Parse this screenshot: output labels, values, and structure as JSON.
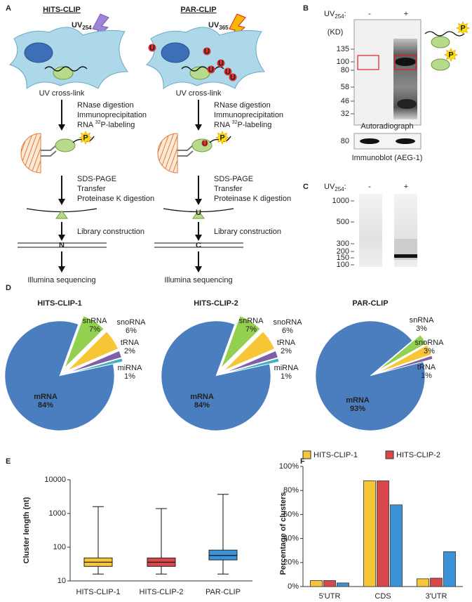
{
  "panel_labels": [
    "A",
    "B",
    "C",
    "D",
    "E",
    "F"
  ],
  "panel_a": {
    "methods": [
      {
        "title": "HITS-CLIP",
        "uv": {
          "base": "UV",
          "sub": "254"
        }
      },
      {
        "title": "PAR-CLIP",
        "uv": {
          "base": "UV",
          "sub": "365"
        }
      }
    ],
    "crosslink": "UV cross-link",
    "steps1": [
      "RNase digestion",
      "Immunoprecipitation"
    ],
    "labeling": {
      "before": "RNA ",
      "sup": "32",
      "after": "P-labeling"
    },
    "steps2": [
      "SDS-PAGE",
      "Transfer",
      "Proteinase K digestion"
    ],
    "library": "Library construction",
    "sequencing": "Illumina sequencing",
    "marks": {
      "phosphate": "P",
      "uridine": "U",
      "hits_mutation": "N",
      "par_mutation": "C"
    }
  },
  "panel_b": {
    "uv": {
      "base": "UV",
      "sub": "254",
      "suffix": ":"
    },
    "lanes": [
      "-",
      "+"
    ],
    "unit": "(KD)",
    "markers": [
      135,
      100,
      80,
      58,
      46,
      32
    ],
    "autoradiograph": "Autoradiograph",
    "blot_marker": 80,
    "immunoblot": "Immunoblot (AEG-1)"
  },
  "panel_c": {
    "uv": {
      "base": "UV",
      "sub": "254",
      "suffix": ":"
    },
    "lanes": [
      "-",
      "+"
    ],
    "markers": [
      1000,
      500,
      300,
      200,
      150,
      100
    ]
  },
  "chart_data": [
    {
      "type": "pie",
      "title": "HITS-CLIP-1",
      "categories": [
        "mRNA",
        "snRNA",
        "snoRNA",
        "tRNA",
        "miRNA"
      ],
      "values": [
        84,
        7,
        6,
        2,
        1
      ],
      "value_labels": [
        "84%",
        "7%",
        "6%",
        "2%",
        "1%"
      ],
      "colors": [
        "#4a7ebf",
        "#92d050",
        "#f7c637",
        "#7f5fa5",
        "#3fb0c4"
      ]
    },
    {
      "type": "pie",
      "title": "HITS-CLIP-2",
      "categories": [
        "mRNA",
        "snRNA",
        "snoRNA",
        "tRNA",
        "miRNA"
      ],
      "values": [
        84,
        7,
        6,
        2,
        1
      ],
      "value_labels": [
        "84%",
        "7%",
        "6%",
        "2%",
        "1%"
      ],
      "colors": [
        "#4a7ebf",
        "#92d050",
        "#f7c637",
        "#7f5fa5",
        "#3fb0c4"
      ]
    },
    {
      "type": "pie",
      "title": "PAR-CLIP",
      "categories": [
        "mRNA",
        "snRNA",
        "snoRNA",
        "tRNA"
      ],
      "values": [
        93,
        3,
        3,
        1
      ],
      "value_labels": [
        "93%",
        "3%",
        "3%",
        "1%"
      ],
      "colors": [
        "#4a7ebf",
        "#92d050",
        "#f7c637",
        "#7f5fa5"
      ]
    },
    {
      "type": "box",
      "ylabel": "Cluster length (nt)",
      "log_scale": true,
      "categories": [
        "HITS-CLIP-1",
        "HITS-CLIP-2",
        "PAR-CLIP"
      ],
      "colors": [
        "#f7c637",
        "#d9474a",
        "#3b94d9"
      ],
      "stats": [
        {
          "min": 16,
          "q1": 27,
          "median": 36,
          "q3": 48,
          "max": 1600
        },
        {
          "min": 16,
          "q1": 27,
          "median": 36,
          "q3": 48,
          "max": 1400
        },
        {
          "min": 16,
          "q1": 42,
          "median": 57,
          "q3": 82,
          "max": 3700
        }
      ],
      "ylim": [
        10,
        10000
      ],
      "yticks": [
        10,
        100,
        1000,
        10000
      ]
    },
    {
      "type": "bar",
      "ylabel": "Percentage of clusters",
      "categories": [
        "5'UTR",
        "CDS",
        "3'UTR"
      ],
      "series": [
        {
          "name": "HITS-CLIP-1",
          "color": "#f7c637",
          "values": [
            5,
            88,
            6.5
          ]
        },
        {
          "name": "HITS-CLIP-2",
          "color": "#d9474a",
          "values": [
            5,
            88,
            7
          ]
        },
        {
          "color": "#3b94d9",
          "values": [
            3,
            68,
            29
          ]
        }
      ],
      "ylim": [
        0,
        100
      ],
      "yticks": [
        {
          "value": 0,
          "label": "0%"
        },
        {
          "value": 20,
          "label": "20%"
        },
        {
          "value": 40,
          "label": "40%"
        },
        {
          "value": 60,
          "label": "60%"
        },
        {
          "value": 80,
          "label": "80%"
        },
        {
          "value": 100,
          "label": "100%"
        }
      ]
    }
  ]
}
